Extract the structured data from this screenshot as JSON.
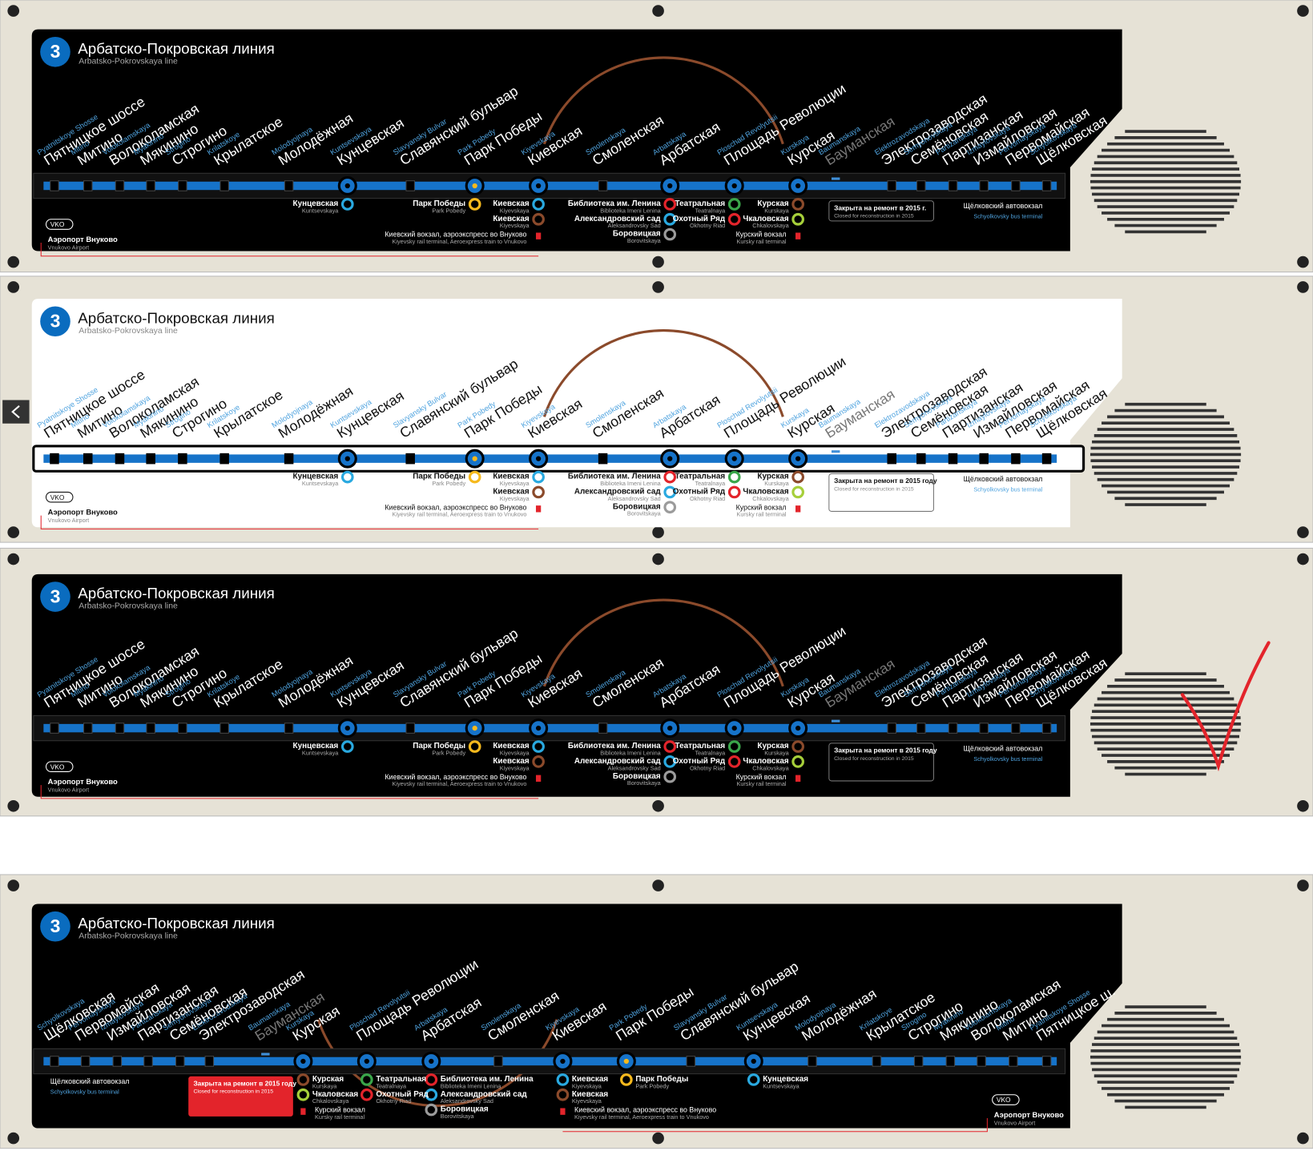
{
  "line": {
    "number": "3",
    "name": "Арбатско-Покровская линия",
    "name_en": "Arbatsko-Pokrovskaya line"
  },
  "stations": [
    {
      "name": "Пятницкое шоссе",
      "name_short": "Пятницкое ш.",
      "name_en": "Pyatnitskoye Shosse"
    },
    {
      "name": "Митино",
      "name_en": "Mitino"
    },
    {
      "name": "Волоколамская",
      "name_en": "Volokolamskaya"
    },
    {
      "name": "Мякинино",
      "name_en": "Myakinino"
    },
    {
      "name": "Строгино",
      "name_en": "Strogino"
    },
    {
      "name": "Крылатское",
      "name_en": "Krilatskoye"
    },
    {
      "name": "Молодёжная",
      "name_en": "Molodyojnaya"
    },
    {
      "name": "Кунцевская",
      "name_en": "Kuntsevskaya"
    },
    {
      "name": "Славянский бульвар",
      "name_en": "Slavyansky Bulvar"
    },
    {
      "name": "Парк Победы",
      "name_en": "Park Pobedy"
    },
    {
      "name": "Киевская",
      "name_en": "Kiyevskaya"
    },
    {
      "name": "Смоленская",
      "name_en": "Smolenskaya"
    },
    {
      "name": "Арбатская",
      "name_en": "Arbatskaya"
    },
    {
      "name": "Площадь Революции",
      "name_en": "Ploschad Revolyutsii"
    },
    {
      "name": "Курская",
      "name_en": "Kurskaya"
    },
    {
      "name": "Бауманская",
      "name_en": "Baumanskaya"
    },
    {
      "name": "Электрозаводская",
      "name_en": "Elektrozavodskaya"
    },
    {
      "name": "Семёновская",
      "name_en": "Semyonovskaya"
    },
    {
      "name": "Партизанская",
      "name_en": "Partizanskaya"
    },
    {
      "name": "Измайловская",
      "name_en": "Izmaylovskaya"
    },
    {
      "name": "Первомайская",
      "name_en": "Pervomayskaya"
    },
    {
      "name": "Щёлковская",
      "name_en": "Schyolkovskaya"
    }
  ],
  "transfers": [
    [
      {
        "name": "Кунцевская",
        "name_en": "Kuntsevskaya",
        "color": "#29a9e0"
      }
    ],
    [
      {
        "name": "Парк Победы",
        "name_en": "Park Pobedy",
        "color": "#f6b91d"
      }
    ],
    [
      {
        "name": "Киевская",
        "name_en": "Kiyevskaya",
        "color": "#29a9e0"
      },
      {
        "name": "Киевская",
        "name_en": "Kiyevskaya",
        "color": "#8b4a2b"
      }
    ],
    [
      {
        "name": "Библиотека им. Ленина",
        "name_en": "Biblioteka Imeni Lenina",
        "color": "#e3242b"
      },
      {
        "name": "Александровский сад",
        "name_en": "Aleksandrovsky Sad",
        "color": "#29a9e0"
      },
      {
        "name": "Боровицкая",
        "name_en": "Borovitskaya",
        "color": "#9b9b9b"
      }
    ],
    [
      {
        "name": "Театральная",
        "name_en": "Teatralnaya",
        "color": "#3aa64a"
      },
      {
        "name": "Охотный Ряд",
        "name_en": "Okhotny Riad",
        "color": "#e3242b"
      }
    ],
    [
      {
        "name": "Курская",
        "name_en": "Kurskaya",
        "color": "#8b4a2b"
      },
      {
        "name": "Чкаловская",
        "name_en": "Chkalovskaya",
        "color": "#a6cf3a"
      }
    ]
  ],
  "rail": {
    "kiev": {
      "name": "Киевский вокзал, аэроэкспресс во Внуково",
      "name_en": "Kiyevsky rail terminal, Aeroexpress train to Vnukovo"
    },
    "kursk": {
      "name": "Курский вокзал",
      "name_en": "Kursky rail terminal"
    }
  },
  "airport": {
    "code": "VKO",
    "name": "Аэропорт Внуково",
    "name_en": "Vnukovo Airport"
  },
  "bus_terminal": {
    "name": "Щёлковский автовокзал",
    "name_en": "Schyolkovsky bus terminal"
  },
  "closure": {
    "name": "Закрыта на ремонт в 2015 г.",
    "name_alt": "Закрыта на ремонт в 2015 году",
    "name_en": "Closed for reconstruction in 2015"
  }
}
